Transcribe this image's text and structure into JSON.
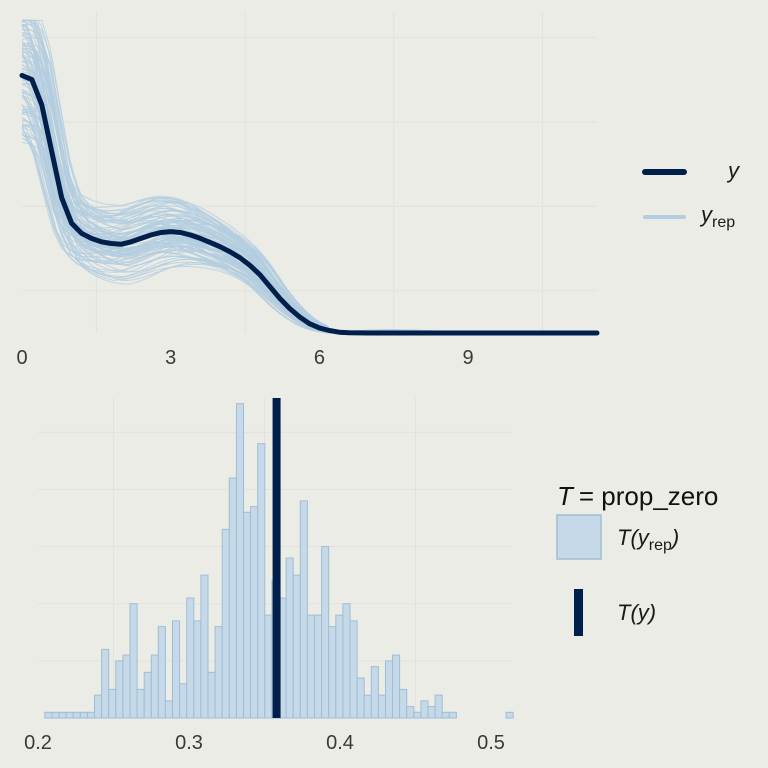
{
  "chart_data": [
    {
      "type": "line",
      "xlim": [
        0,
        11.6
      ],
      "x_ticks": [
        "0",
        "3",
        "6",
        "9"
      ],
      "x_tick_values": [
        0,
        3,
        6,
        9
      ],
      "grid": true,
      "legend": {
        "placement": "right",
        "entries": [
          {
            "base": "y",
            "sub": "",
            "color": "#011f4b",
            "style": "thick"
          },
          {
            "base": "y",
            "sub": "rep",
            "color": "#b3cde0",
            "style": "thin"
          }
        ]
      },
      "series": [
        {
          "name": "y",
          "color": "#011f4b",
          "x": [
            0,
            0.2,
            0.4,
            0.6,
            0.8,
            1.0,
            1.2,
            1.4,
            1.6,
            1.8,
            2.0,
            2.2,
            2.4,
            2.6,
            2.8,
            3.0,
            3.2,
            3.4,
            3.6,
            3.8,
            4.0,
            4.2,
            4.4,
            4.6,
            4.8,
            5.0,
            5.2,
            5.4,
            5.6,
            5.8,
            6.0,
            6.2,
            6.4,
            6.6,
            6.8,
            7.0,
            8.0,
            9.0,
            10.0,
            11.6
          ],
          "y": [
            0.305,
            0.3,
            0.27,
            0.215,
            0.16,
            0.13,
            0.118,
            0.112,
            0.108,
            0.106,
            0.105,
            0.108,
            0.112,
            0.116,
            0.119,
            0.12,
            0.119,
            0.116,
            0.112,
            0.107,
            0.102,
            0.096,
            0.089,
            0.08,
            0.069,
            0.055,
            0.041,
            0.029,
            0.019,
            0.011,
            0.006,
            0.003,
            0.001,
            0.0003,
            0.0001,
            0,
            0,
            0,
            0,
            0
          ]
        }
      ],
      "yrep_color": "#b3cde0",
      "yrep_count": 100
    },
    {
      "type": "bar",
      "title": "T = prop_zero",
      "xlim": [
        0.2,
        0.5
      ],
      "x_ticks": [
        "0.2",
        "0.3",
        "0.4",
        "0.5"
      ],
      "x_tick_values": [
        0.2,
        0.3,
        0.4,
        0.5
      ],
      "grid": true,
      "bin_start": 0.2045,
      "bin_width": 0.0047,
      "counts": [
        1,
        1,
        1,
        1,
        1,
        1,
        1,
        4,
        12,
        5,
        10,
        11,
        20,
        5,
        8,
        11,
        16,
        3,
        17,
        6,
        21,
        17,
        25,
        8,
        16,
        33,
        42,
        55,
        36,
        37,
        48,
        18,
        24,
        21,
        28,
        25,
        38,
        18,
        18,
        30,
        16,
        18,
        20,
        17,
        7,
        4,
        9,
        4,
        10,
        11,
        5,
        2,
        1,
        3,
        2,
        4,
        1,
        1,
        0,
        0,
        0,
        0,
        0,
        0,
        0,
        1
      ],
      "ylim": [
        0,
        56
      ],
      "observed_T": 0.358,
      "fill_color": "#c6d9e8",
      "edge_color": "#9fbdd4",
      "line_color": "#011f4b",
      "legend": {
        "placement": "right",
        "entries": [
          {
            "label": "T(y_rep)",
            "base": "T(y",
            "sub": "rep",
            "close": ")",
            "style": "box"
          },
          {
            "label": "T(y)",
            "base": "T(y)",
            "sub": "",
            "close": "",
            "style": "line"
          }
        ]
      }
    }
  ]
}
